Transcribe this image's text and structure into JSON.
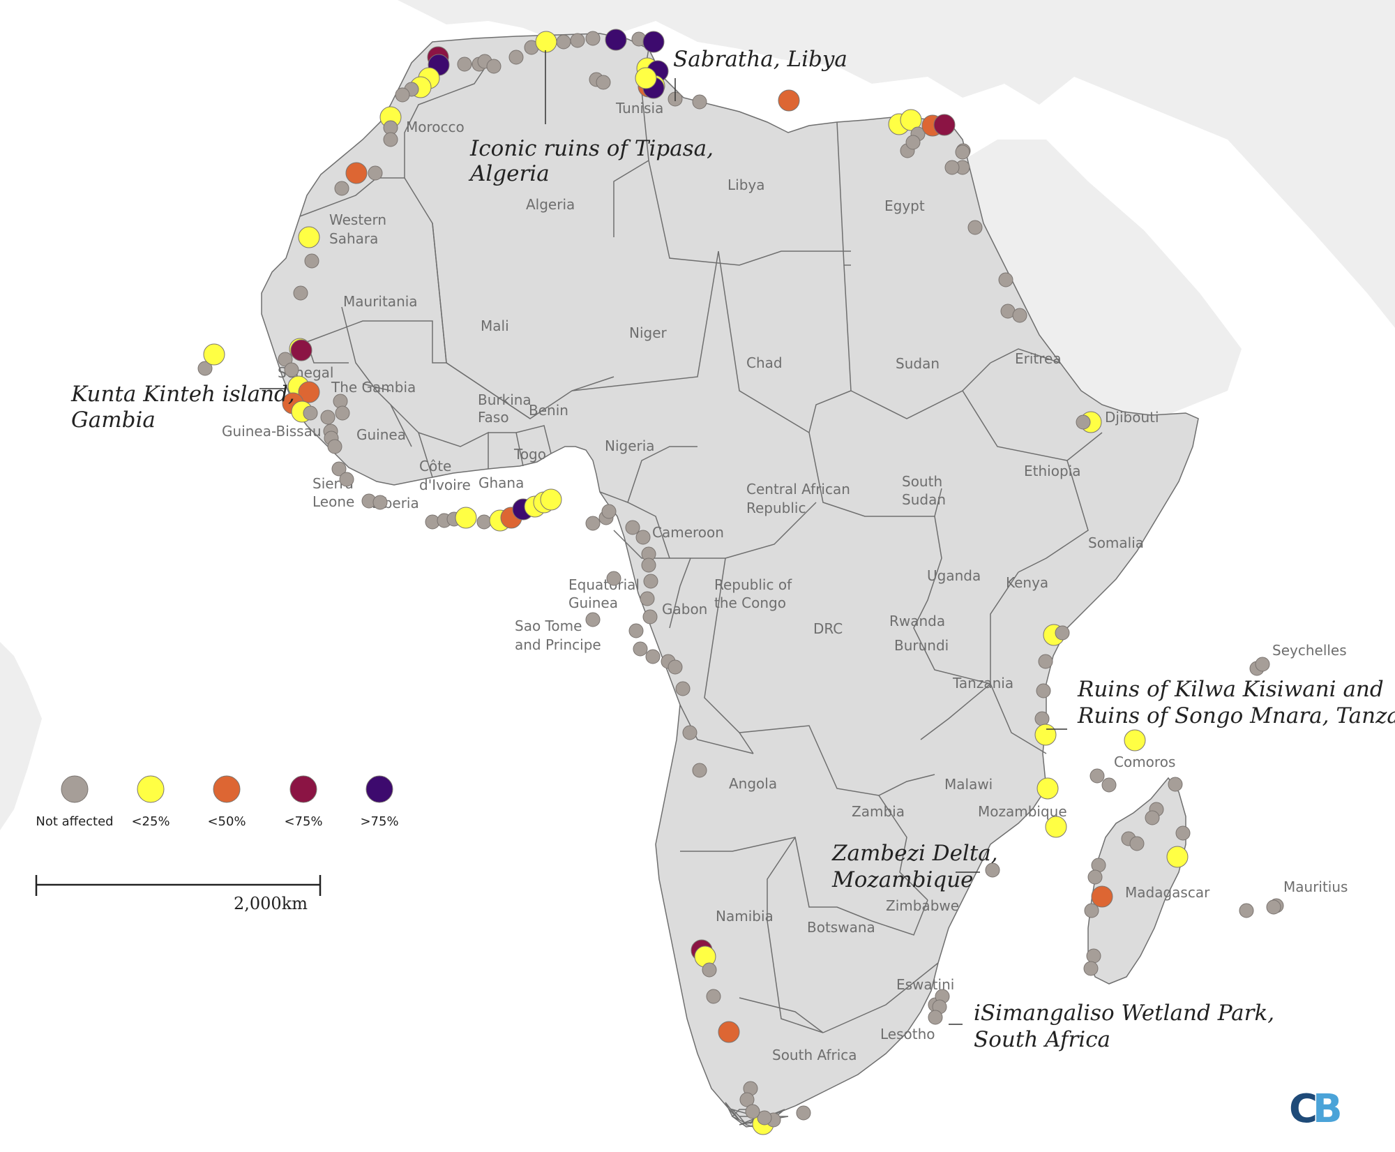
{
  "colors": {
    "land": "#dcdcdc",
    "border": "#6e6e6e",
    "background_land": "#eeeeee",
    "not_affected": "#a69e98",
    "lt25": "#ffff44",
    "lt50": "#dd6633",
    "lt75": "#8b1444",
    "gt75": "#3d0a6e",
    "logo_dark": "#1e4a78",
    "logo_light": "#4aa3d8"
  },
  "countries": [
    {
      "id": "morocco",
      "label": "Morocco"
    },
    {
      "id": "algeria",
      "label": "Algeria"
    },
    {
      "id": "tunisia",
      "label": "Tunisia"
    },
    {
      "id": "libya",
      "label": "Libya"
    },
    {
      "id": "egypt",
      "label": "Egypt"
    },
    {
      "id": "western-sahara-1",
      "label": "Western"
    },
    {
      "id": "western-sahara-2",
      "label": "Sahara"
    },
    {
      "id": "mauritania",
      "label": "Mauritania"
    },
    {
      "id": "mali",
      "label": "Mali"
    },
    {
      "id": "niger",
      "label": "Niger"
    },
    {
      "id": "chad",
      "label": "Chad"
    },
    {
      "id": "sudan",
      "label": "Sudan"
    },
    {
      "id": "eritrea",
      "label": "Eritrea"
    },
    {
      "id": "djibouti",
      "label": "Djibouti"
    },
    {
      "id": "senegal",
      "label": "Senegal"
    },
    {
      "id": "the-gambia",
      "label": "The Gambia"
    },
    {
      "id": "guinea-bissau",
      "label": "Guinea-Bissau"
    },
    {
      "id": "guinea",
      "label": "Guinea"
    },
    {
      "id": "burkina-faso-1",
      "label": "Burkina"
    },
    {
      "id": "burkina-faso-2",
      "label": "Faso"
    },
    {
      "id": "benin",
      "label": "Benin"
    },
    {
      "id": "togo",
      "label": "Togo"
    },
    {
      "id": "nigeria",
      "label": "Nigeria"
    },
    {
      "id": "cote-divoire-1",
      "label": "Côte"
    },
    {
      "id": "cote-divoire-2",
      "label": "d'Ivoire"
    },
    {
      "id": "ghana",
      "label": "Ghana"
    },
    {
      "id": "sierra-leone-1",
      "label": "Sierra"
    },
    {
      "id": "sierra-leone-2",
      "label": "Leone"
    },
    {
      "id": "liberia",
      "label": "Liberia"
    },
    {
      "id": "ethiopia",
      "label": "Ethiopia"
    },
    {
      "id": "south-sudan-1",
      "label": "South"
    },
    {
      "id": "south-sudan-2",
      "label": "Sudan"
    },
    {
      "id": "car-1",
      "label": "Central African"
    },
    {
      "id": "car-2",
      "label": "Republic"
    },
    {
      "id": "cameroon",
      "label": "Cameroon"
    },
    {
      "id": "somalia",
      "label": "Somalia"
    },
    {
      "id": "equatorial-guinea-1",
      "label": "Equatorial"
    },
    {
      "id": "equatorial-guinea-2",
      "label": "Guinea"
    },
    {
      "id": "gabon",
      "label": "Gabon"
    },
    {
      "id": "congo-1",
      "label": "Republic of"
    },
    {
      "id": "congo-2",
      "label": "the Congo"
    },
    {
      "id": "sao-tome-1",
      "label": "Sao Tome"
    },
    {
      "id": "sao-tome-2",
      "label": "and Principe"
    },
    {
      "id": "uganda",
      "label": "Uganda"
    },
    {
      "id": "kenya",
      "label": "Kenya"
    },
    {
      "id": "drc",
      "label": "DRC"
    },
    {
      "id": "rwanda",
      "label": "Rwanda"
    },
    {
      "id": "burundi",
      "label": "Burundi"
    },
    {
      "id": "tanzania",
      "label": "Tanzania"
    },
    {
      "id": "seychelles",
      "label": "Seychelles"
    },
    {
      "id": "comoros",
      "label": "Comoros"
    },
    {
      "id": "angola",
      "label": "Angola"
    },
    {
      "id": "malawi",
      "label": "Malawi"
    },
    {
      "id": "zambia",
      "label": "Zambia"
    },
    {
      "id": "mozambique",
      "label": "Mozambique"
    },
    {
      "id": "madagascar",
      "label": "Madagascar"
    },
    {
      "id": "mauritius",
      "label": "Mauritius"
    },
    {
      "id": "namibia",
      "label": "Namibia"
    },
    {
      "id": "zimbabwe",
      "label": "Zimbabwe"
    },
    {
      "id": "botswana",
      "label": "Botswana"
    },
    {
      "id": "eswatini",
      "label": "Eswatini"
    },
    {
      "id": "lesotho",
      "label": "Lesotho"
    },
    {
      "id": "south-africa",
      "label": "South Africa"
    }
  ],
  "annotations": [
    {
      "id": "sabratha",
      "lines": [
        "Sabratha, Libya"
      ]
    },
    {
      "id": "tipasa",
      "lines": [
        "Iconic ruins of Tipasa,",
        "Algeria"
      ]
    },
    {
      "id": "kunta-kinteh",
      "lines": [
        "Kunta Kinteh island,",
        "Gambia"
      ]
    },
    {
      "id": "kilwa",
      "lines": [
        "Ruins of Kilwa Kisiwani and",
        "Ruins of Songo Mnara, Tanzania"
      ]
    },
    {
      "id": "zambezi",
      "lines": [
        "Zambezi Delta,",
        "Mozambique"
      ]
    },
    {
      "id": "isimangaliso",
      "lines": [
        "iSimangaliso Wetland Park,",
        "South Africa"
      ]
    }
  ],
  "legend": {
    "items": [
      {
        "id": "not-affected",
        "label": "Not affected",
        "category": "not_affected"
      },
      {
        "id": "lt25",
        "label": "<25%",
        "category": "lt25"
      },
      {
        "id": "lt50",
        "label": "<50%",
        "category": "lt50"
      },
      {
        "id": "lt75",
        "label": "<75%",
        "category": "lt75"
      },
      {
        "id": "gt75",
        "label": ">75%",
        "category": "gt75"
      }
    ]
  },
  "scale_bar": {
    "label": "2,000km"
  },
  "logo": {
    "text_c": "C",
    "text_b": "B"
  }
}
